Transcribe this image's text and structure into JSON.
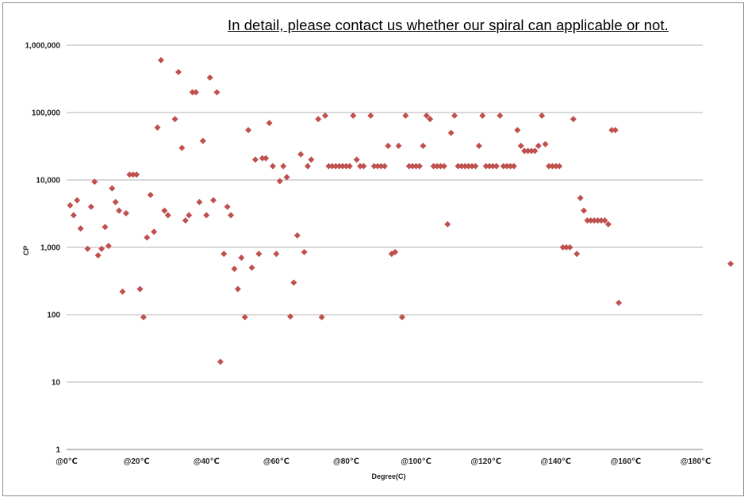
{
  "note": "In detail, please contact us whether our spiral can applicable or not.",
  "chart_data": {
    "type": "scatter",
    "xlabel": "Degree(C)",
    "ylabel": "CP",
    "y_scale": "log",
    "ylim": [
      1,
      1000000
    ],
    "xlim": [
      0,
      190
    ],
    "y_ticks": [
      1,
      10,
      100,
      1000,
      10000,
      100000,
      1000000
    ],
    "y_tick_labels": [
      "1",
      "10",
      "100",
      "1,000",
      "10,000",
      "100,000",
      "1,000,000"
    ],
    "x_ticks": [
      0,
      20,
      40,
      60,
      80,
      100,
      120,
      140,
      160,
      180
    ],
    "x_tick_labels": [
      "@0℃",
      "@20℃",
      "@40℃",
      "@60℃",
      "@80℃",
      "@100℃",
      "@120℃",
      "@140℃",
      "@160℃",
      "@180℃"
    ],
    "grid": "horizontal",
    "marker_color": "#c0504d",
    "marker": "diamond",
    "points": [
      [
        1,
        4200
      ],
      [
        2,
        3000
      ],
      [
        3,
        5000
      ],
      [
        4,
        1900
      ],
      [
        6,
        950
      ],
      [
        7,
        4000
      ],
      [
        8,
        9400
      ],
      [
        9,
        760
      ],
      [
        10,
        950
      ],
      [
        11,
        2000
      ],
      [
        12,
        1050
      ],
      [
        13,
        7500
      ],
      [
        14,
        4700
      ],
      [
        15,
        3500
      ],
      [
        16,
        220
      ],
      [
        17,
        3200
      ],
      [
        18,
        12000
      ],
      [
        19,
        12000
      ],
      [
        20,
        12000
      ],
      [
        21,
        240
      ],
      [
        22,
        92
      ],
      [
        23,
        1400
      ],
      [
        24,
        6000
      ],
      [
        25,
        1700
      ],
      [
        26,
        60000
      ],
      [
        27,
        600000
      ],
      [
        28,
        3500
      ],
      [
        29,
        3000
      ],
      [
        31,
        80000
      ],
      [
        32,
        400000
      ],
      [
        33,
        30000
      ],
      [
        34,
        2500
      ],
      [
        35,
        3000
      ],
      [
        36,
        200000
      ],
      [
        37,
        200000
      ],
      [
        38,
        4700
      ],
      [
        39,
        38000
      ],
      [
        40,
        3000
      ],
      [
        41,
        330000
      ],
      [
        42,
        5000
      ],
      [
        43,
        200000
      ],
      [
        44,
        20
      ],
      [
        45,
        800
      ],
      [
        46,
        4000
      ],
      [
        47,
        3000
      ],
      [
        48,
        480
      ],
      [
        49,
        240
      ],
      [
        50,
        700
      ],
      [
        51,
        92
      ],
      [
        52,
        55000
      ],
      [
        53,
        500
      ],
      [
        54,
        20000
      ],
      [
        55,
        800
      ],
      [
        56,
        21000
      ],
      [
        57,
        21000
      ],
      [
        58,
        70000
      ],
      [
        59,
        16000
      ],
      [
        60,
        800
      ],
      [
        61,
        9600
      ],
      [
        62,
        16000
      ],
      [
        63,
        11000
      ],
      [
        64,
        94
      ],
      [
        65,
        300
      ],
      [
        66,
        1500
      ],
      [
        67,
        24000
      ],
      [
        68,
        850
      ],
      [
        69,
        16000
      ],
      [
        70,
        20000
      ],
      [
        72,
        80000
      ],
      [
        73,
        92
      ],
      [
        74,
        90000
      ],
      [
        75,
        16000
      ],
      [
        76,
        16000
      ],
      [
        77,
        16000
      ],
      [
        78,
        16000
      ],
      [
        79,
        16000
      ],
      [
        80,
        16000
      ],
      [
        81,
        16000
      ],
      [
        82,
        90000
      ],
      [
        83,
        20000
      ],
      [
        84,
        16000
      ],
      [
        85,
        16000
      ],
      [
        87,
        90000
      ],
      [
        88,
        16000
      ],
      [
        89,
        16000
      ],
      [
        90,
        16000
      ],
      [
        91,
        16000
      ],
      [
        92,
        32000
      ],
      [
        93,
        800
      ],
      [
        94,
        850
      ],
      [
        95,
        32000
      ],
      [
        96,
        92
      ],
      [
        97,
        90000
      ],
      [
        98,
        16000
      ],
      [
        99,
        16000
      ],
      [
        100,
        16000
      ],
      [
        101,
        16000
      ],
      [
        102,
        32000
      ],
      [
        103,
        90000
      ],
      [
        104,
        80000
      ],
      [
        105,
        16000
      ],
      [
        106,
        16000
      ],
      [
        107,
        16000
      ],
      [
        108,
        16000
      ],
      [
        109,
        2200
      ],
      [
        110,
        50000
      ],
      [
        111,
        90000
      ],
      [
        112,
        16000
      ],
      [
        113,
        16000
      ],
      [
        114,
        16000
      ],
      [
        115,
        16000
      ],
      [
        116,
        16000
      ],
      [
        117,
        16000
      ],
      [
        118,
        32000
      ],
      [
        119,
        90000
      ],
      [
        120,
        16000
      ],
      [
        121,
        16000
      ],
      [
        122,
        16000
      ],
      [
        123,
        16000
      ],
      [
        124,
        90000
      ],
      [
        125,
        16000
      ],
      [
        126,
        16000
      ],
      [
        127,
        16000
      ],
      [
        128,
        16000
      ],
      [
        129,
        55000
      ],
      [
        130,
        32000
      ],
      [
        131,
        27000
      ],
      [
        132,
        27000
      ],
      [
        133,
        27000
      ],
      [
        134,
        27000
      ],
      [
        135,
        32000
      ],
      [
        136,
        90000
      ],
      [
        137,
        34000
      ],
      [
        138,
        16000
      ],
      [
        139,
        16000
      ],
      [
        140,
        16000
      ],
      [
        141,
        16000
      ],
      [
        142,
        1000
      ],
      [
        143,
        1000
      ],
      [
        144,
        1000
      ],
      [
        145,
        80000
      ],
      [
        146,
        800
      ],
      [
        147,
        5400
      ],
      [
        148,
        3500
      ],
      [
        149,
        2500
      ],
      [
        150,
        2500
      ],
      [
        151,
        2500
      ],
      [
        152,
        2500
      ],
      [
        153,
        2500
      ],
      [
        154,
        2500
      ],
      [
        155,
        2200
      ],
      [
        156,
        55000
      ],
      [
        157,
        55000
      ],
      [
        158,
        150
      ],
      [
        190,
        570
      ]
    ]
  }
}
